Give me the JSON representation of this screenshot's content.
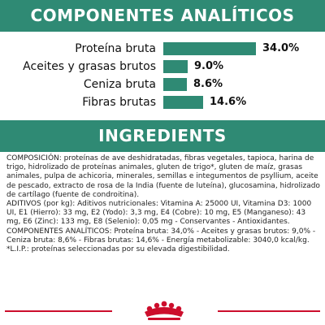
{
  "analytic": {
    "title": "COMPONENTES ANALÍTICOS",
    "items": [
      {
        "label": "Proteína bruta",
        "value_text": "34.0%",
        "value": 34.0
      },
      {
        "label": "Aceites y grasas brutos",
        "value_text": "9.0%",
        "value": 9.0
      },
      {
        "label": "Ceniza bruta",
        "value_text": "8.6%",
        "value": 8.6
      },
      {
        "label": "Fibras brutas",
        "value_text": "14.6%",
        "value": 14.6
      }
    ]
  },
  "ingredients": {
    "title": "INGREDIENTS",
    "paragraphs": [
      "COMPOSICIÓN: proteínas de ave deshidratadas, fibras vegetales, tapioca, harina de trigo, hidrolizado de proteínas animales, gluten de trigo*, gluten de maíz, grasas animales, pulpa de achicoria, minerales, semillas e integumentos de psyllium, aceite de pescado, extracto de rosa de la India (fuente de luteína), glucosamina, hidrolizado de cartílago (fuente de condroitina).",
      "ADITIVOS (por kg): Aditivos nutricionales: Vitamina A: 25000 UI, Vitamina D3: 1000 UI, E1 (Hierro): 33 mg, E2 (Yodo): 3,3 mg, E4 (Cobre): 10 mg, E5 (Manganeso): 43 mg, E6 (Zinc): 133 mg, E8 (Selenio): 0,05 mg - Conservantes - Antioxidantes.",
      "COMPONENTES ANALÍTICOS: Proteína bruta: 34,0% - Aceites y grasas brutos: 9,0% - Ceniza bruta: 8,6% - Fibras brutas: 14,6% - Energía metabolizable: 3040,0 kcal/kg.",
      "*L.I.P.: proteínas seleccionadas por su elevada digestibilidad."
    ]
  },
  "footer": {
    "logo": "royal-canin-crown-icon"
  },
  "colors": {
    "accent": "#2f8a74",
    "brand_red": "#cc0e2c",
    "text": "#222222"
  }
}
